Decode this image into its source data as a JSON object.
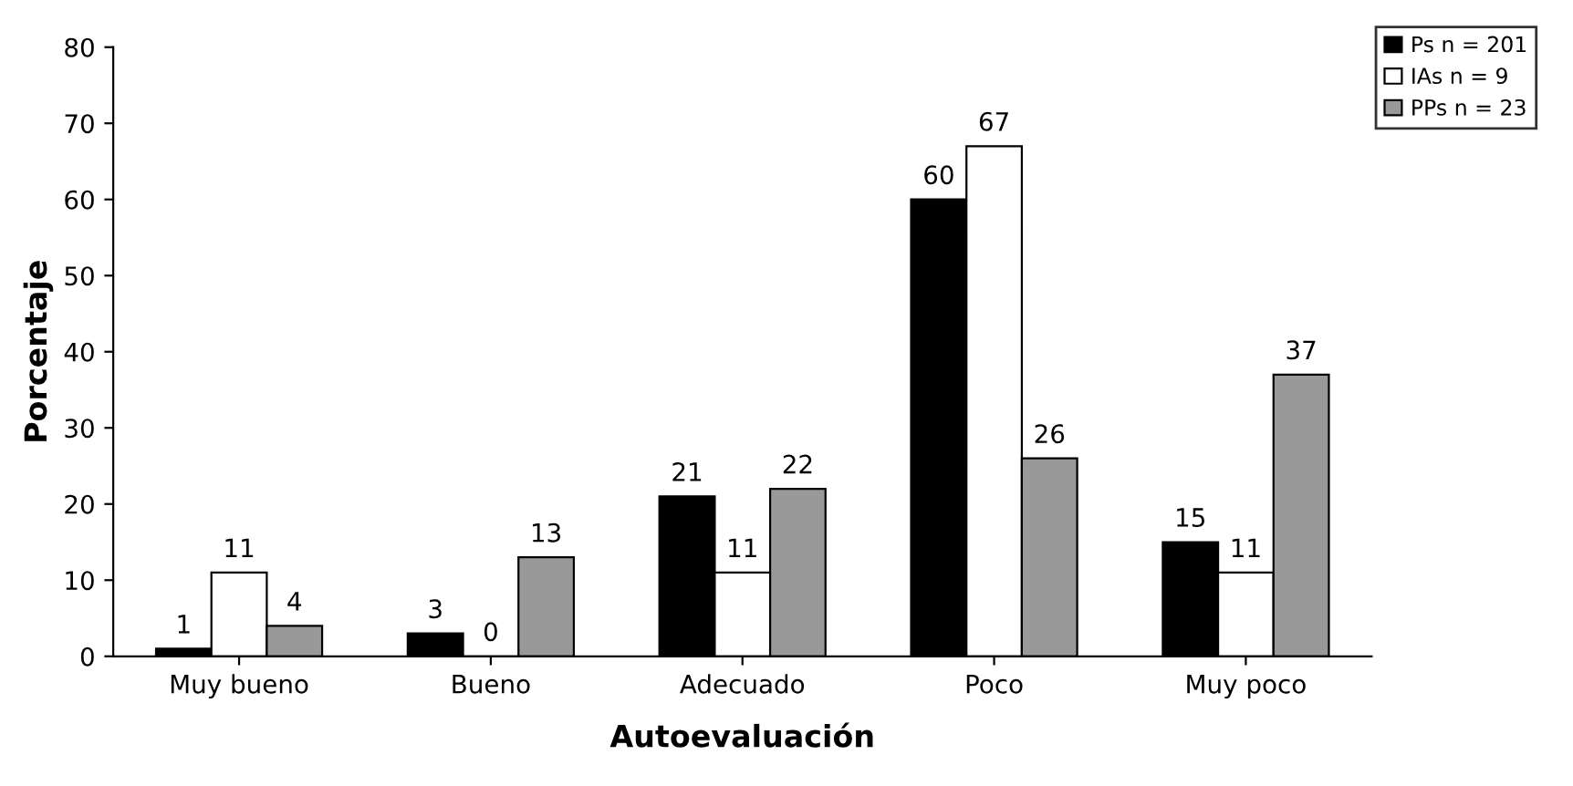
{
  "chart_data": {
    "type": "bar",
    "xlabel": "Autoevaluación",
    "ylabel": "Porcentaje",
    "categories": [
      "Muy bueno",
      "Bueno",
      "Adecuado",
      "Poco",
      "Muy poco"
    ],
    "series": [
      {
        "name": "Ps n = 201",
        "color": "#000000",
        "values": [
          1,
          3,
          21,
          60,
          15
        ]
      },
      {
        "name": "IAs n = 9",
        "color": "#ffffff",
        "values": [
          11,
          0,
          11,
          67,
          11
        ]
      },
      {
        "name": "PPs n = 23",
        "color": "#999999",
        "values": [
          4,
          13,
          22,
          26,
          37
        ]
      }
    ],
    "ylim": [
      0,
      80
    ],
    "yticks": [
      0,
      10,
      20,
      30,
      40,
      50,
      60,
      70,
      80
    ],
    "data_labels": true,
    "grid": false,
    "legend": "top right"
  }
}
